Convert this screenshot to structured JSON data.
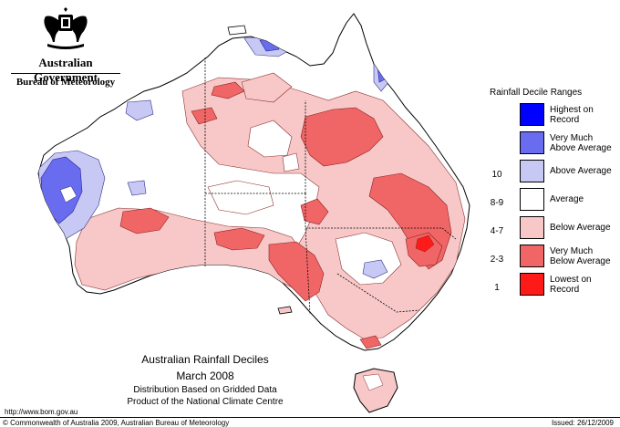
{
  "header": {
    "government": "Australian Government",
    "bureau": "Bureau of Meteorology"
  },
  "map": {
    "title": "Australian Rainfall Deciles",
    "date": "March 2008",
    "subtitle1": "Distribution Based on Gridded Data",
    "subtitle2": "Product of the National Climate Centre"
  },
  "legend": {
    "title": "Rainfall Decile Ranges",
    "items": [
      {
        "range": "",
        "label_line1": "Highest on",
        "label_line2": "Record",
        "color": "#0000ff"
      },
      {
        "range": "10",
        "label_line1": "Very Much",
        "label_line2": "Above Average",
        "color": "#6a6cf0"
      },
      {
        "range": "8-9",
        "label_line1": "Above Average",
        "label_line2": "",
        "color": "#c8c8f4"
      },
      {
        "range": "4-7",
        "label_line1": "Average",
        "label_line2": "",
        "color": "#ffffff"
      },
      {
        "range": "2-3",
        "label_line1": "Below Average",
        "label_line2": "",
        "color": "#f8c8c8"
      },
      {
        "range": "1",
        "label_line1": "Very Much",
        "label_line2": "Below Average",
        "color": "#f06666"
      },
      {
        "range": "",
        "label_line1": "Lowest on",
        "label_line2": "Record",
        "color": "#ff1a1a"
      }
    ]
  },
  "footer": {
    "url": "http://www.bom.gov.au",
    "copyright": "© Commonwealth of Australia 2009, Australian Bureau of Meteorology",
    "issued": "Issued: 26/12/2009"
  },
  "colors": {
    "below": "#f8c8c8",
    "very_below": "#f06666",
    "above": "#c8c8f4",
    "very_above": "#6a6cf0"
  }
}
